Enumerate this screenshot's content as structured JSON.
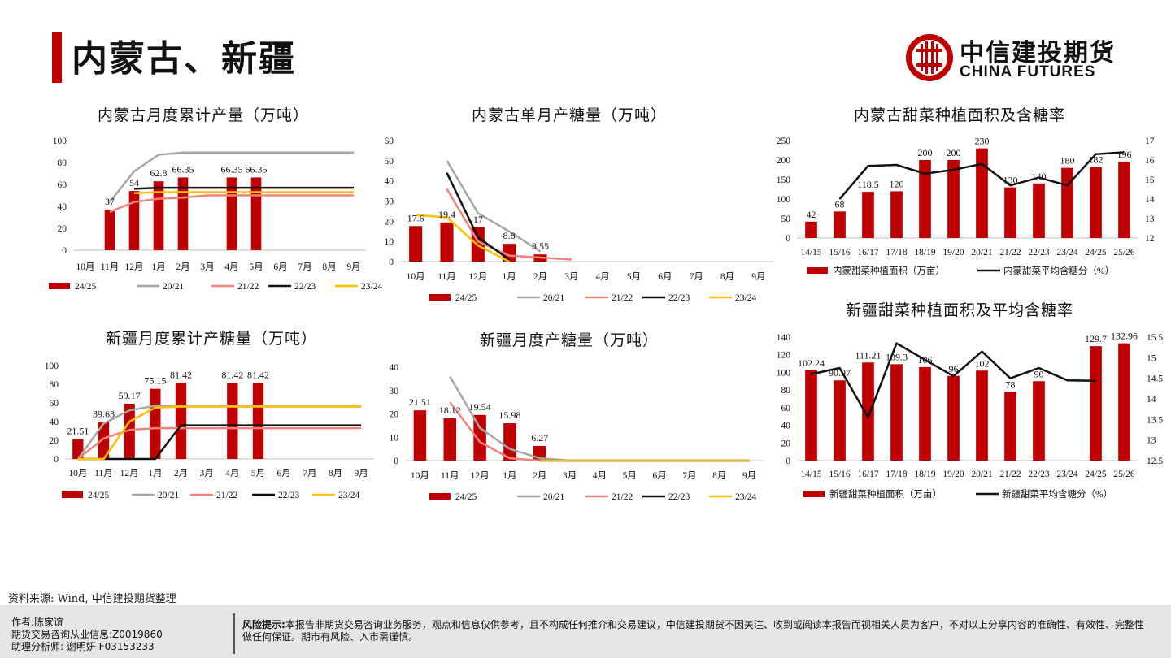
{
  "page": {
    "title": "内蒙古、新疆",
    "brand_cn": "中信建投期货",
    "brand_en": "CHINA FUTURES",
    "source": "资料来源: Wind, 中信建投期货整理",
    "footer_left": [
      "作者:陈家谊",
      "期货交易咨询从业信息:Z0019860",
      "助理分析师:  谢明妍 F03153233"
    ],
    "risk_label": "风险提示:",
    "risk_text": "本报告非期货交易咨询业务服务，观点和信息仅供参考，且不构成任何推介和交易建议，中信建投期货不因关注、收到或阅读本报告而视相关人员为客户，不对以上分享内容的准确性、有效性、完整性做任何保证。期市有风险、入市需谨慎。",
    "colors": {
      "red": "#c00000",
      "gray": "#a6a6a6",
      "salmon": "#f4817a",
      "black": "#111111",
      "yellow": "#ffc000"
    }
  },
  "chart_data": [
    {
      "id": "c1",
      "type": "bar+line",
      "title": "内蒙古月度累计产量（万吨）",
      "categories": [
        "10月",
        "11月",
        "12月",
        "1月",
        "2月",
        "3月",
        "4月",
        "5月",
        "6月",
        "7月",
        "8月",
        "9月"
      ],
      "ylim": [
        0,
        100
      ],
      "yticks": [
        0,
        20,
        40,
        60,
        80,
        100
      ],
      "bar_series": {
        "name": "24/25",
        "values": [
          null,
          37,
          54,
          62.8,
          66.35,
          null,
          66.35,
          66.35,
          null,
          null,
          null,
          null
        ],
        "labels": [
          "",
          "37",
          "54",
          "62.8",
          "66.35",
          "",
          "66.35",
          "66.35",
          "",
          "",
          "",
          ""
        ]
      },
      "line_series": [
        {
          "name": "20/21",
          "values": [
            null,
            44,
            72,
            87,
            89,
            89,
            89,
            89,
            89,
            89,
            89,
            89
          ]
        },
        {
          "name": "21/22",
          "values": [
            null,
            35,
            44,
            47,
            48,
            50,
            50,
            50,
            50,
            50,
            50,
            50
          ]
        },
        {
          "name": "22/23",
          "values": [
            null,
            null,
            56,
            57,
            57,
            57,
            57,
            57,
            57,
            57,
            57,
            57
          ]
        },
        {
          "name": "23/24",
          "values": [
            null,
            null,
            52,
            53,
            53,
            53,
            53,
            53,
            53,
            53,
            53,
            53
          ]
        }
      ]
    },
    {
      "id": "c2",
      "type": "bar+line",
      "title": "内蒙古单月产糖量（万吨）",
      "categories": [
        "10月",
        "11月",
        "12月",
        "1月",
        "2月",
        "3月",
        "4月",
        "5月",
        "6月",
        "7月",
        "8月",
        "9月"
      ],
      "ylim": [
        0,
        60
      ],
      "yticks": [
        0,
        10,
        20,
        30,
        40,
        50,
        60
      ],
      "bar_series": {
        "name": "24/25",
        "values": [
          17.6,
          19.4,
          17,
          8.8,
          3.55,
          null,
          null,
          null,
          null,
          null,
          null,
          null
        ],
        "labels": [
          "17.6",
          "19.4",
          "17",
          "8.8",
          "3.55",
          "",
          "",
          "",
          "",
          "",
          "",
          ""
        ]
      },
      "line_series": [
        {
          "name": "20/21",
          "values": [
            null,
            50,
            24,
            15,
            5,
            null,
            null,
            null,
            null,
            null,
            null,
            null
          ]
        },
        {
          "name": "21/22",
          "values": [
            null,
            36,
            10,
            3,
            2,
            1,
            null,
            null,
            null,
            null,
            null,
            null
          ]
        },
        {
          "name": "22/23",
          "values": [
            null,
            44,
            12,
            1,
            null,
            null,
            null,
            null,
            null,
            null,
            null,
            null
          ]
        },
        {
          "name": "23/24",
          "values": [
            23,
            22,
            8,
            0,
            null,
            null,
            null,
            null,
            null,
            null,
            null,
            null
          ]
        }
      ]
    },
    {
      "id": "c3",
      "type": "bar+line-dual",
      "title": "内蒙古甜菜种植面积及含糖率",
      "categories": [
        "14/15",
        "15/16",
        "16/17",
        "17/18",
        "18/19",
        "19/20",
        "20/21",
        "21/22",
        "22/23",
        "23/24",
        "24/25",
        "25/26"
      ],
      "ylim": [
        0,
        250
      ],
      "yticks": [
        0,
        50,
        100,
        150,
        200,
        250
      ],
      "y2lim": [
        12,
        17
      ],
      "y2ticks": [
        12,
        13,
        14,
        15,
        16,
        17
      ],
      "bar_series": {
        "name": "内蒙甜菜种植面积（万亩）",
        "values": [
          42,
          68,
          118.5,
          120,
          200,
          200,
          230,
          130,
          140,
          180,
          182,
          196
        ],
        "labels": [
          "42",
          "68",
          "118.5",
          "120",
          "200",
          "200",
          "230",
          "130",
          "140",
          "180",
          "182",
          "196"
        ]
      },
      "line_series": [
        {
          "name": "内蒙甜菜平均含糖分（%）",
          "axis": "y2",
          "values": [
            null,
            14,
            15.7,
            15.75,
            15.3,
            15.5,
            15.8,
            14.7,
            15.1,
            14.7,
            16.3,
            16.4
          ]
        }
      ]
    },
    {
      "id": "c4",
      "type": "bar+line",
      "title": "新疆月度累计产糖量（万吨）",
      "categories": [
        "10月",
        "11月",
        "12月",
        "1月",
        "2月",
        "3月",
        "4月",
        "5月",
        "6月",
        "7月",
        "8月",
        "9月"
      ],
      "ylim": [
        0,
        100
      ],
      "yticks": [
        0,
        20,
        40,
        60,
        80,
        100
      ],
      "bar_series": {
        "name": "24/25",
        "values": [
          21.51,
          39.63,
          59.17,
          75.15,
          81.42,
          null,
          81.42,
          81.42,
          null,
          null,
          null,
          null
        ],
        "labels": [
          "21.51",
          "39.63",
          "59.17",
          "75.15",
          "81.42",
          "",
          "81.42",
          "81.42",
          "",
          "",
          "",
          ""
        ]
      },
      "line_series": [
        {
          "name": "20/21",
          "values": [
            0,
            38,
            52,
            57,
            57,
            57,
            57,
            57,
            57,
            57,
            57,
            57
          ]
        },
        {
          "name": "21/22",
          "values": [
            0,
            22,
            31,
            33,
            33,
            33,
            33,
            33,
            33,
            33,
            33,
            33
          ]
        },
        {
          "name": "22/23",
          "values": [
            0,
            0,
            0,
            0,
            36,
            36,
            36,
            36,
            36,
            36,
            36,
            36
          ]
        },
        {
          "name": "23/24",
          "values": [
            0,
            0,
            40,
            55,
            56,
            56,
            56,
            56,
            56,
            56,
            56,
            56
          ]
        }
      ]
    },
    {
      "id": "c5",
      "type": "bar+line",
      "title": "新疆月度产糖量（万吨）",
      "categories": [
        "10月",
        "11月",
        "12月",
        "1月",
        "2月",
        "3月",
        "4月",
        "5月",
        "6月",
        "7月",
        "8月",
        "9月"
      ],
      "ylim": [
        0,
        40
      ],
      "yticks": [
        0,
        10,
        20,
        30,
        40
      ],
      "bar_series": {
        "name": "24/25",
        "values": [
          21.51,
          18.12,
          19.54,
          15.98,
          6.27,
          null,
          null,
          null,
          null,
          null,
          null,
          null
        ],
        "labels": [
          "21.51",
          "18.12",
          "19.54",
          "15.98",
          "6.27",
          "",
          "",
          "",
          "",
          "",
          "",
          ""
        ]
      },
      "line_series": [
        {
          "name": "20/21",
          "values": [
            null,
            36,
            14,
            5,
            1,
            0,
            0,
            0,
            0,
            0,
            0,
            0
          ]
        },
        {
          "name": "21/22",
          "values": [
            null,
            25,
            8,
            1,
            0,
            0,
            0,
            0,
            0,
            0,
            0,
            0
          ]
        },
        {
          "name": "22/23",
          "values": [
            null,
            null,
            null,
            null,
            0,
            0,
            0,
            0,
            0,
            0,
            0,
            0
          ]
        },
        {
          "name": "23/24",
          "values": [
            null,
            null,
            null,
            null,
            0,
            0,
            0,
            0,
            0,
            0,
            0,
            0
          ]
        }
      ]
    },
    {
      "id": "c6",
      "type": "bar+line-dual",
      "title": "新疆甜菜种植面积及平均含糖率",
      "categories": [
        "14/15",
        "15/16",
        "16/17",
        "17/18",
        "18/19",
        "19/20",
        "20/21",
        "21/22",
        "22/23",
        "23/24",
        "24/25",
        "25/26"
      ],
      "ylim": [
        0,
        140
      ],
      "yticks": [
        0,
        20,
        40,
        60,
        80,
        100,
        120,
        140
      ],
      "y2lim": [
        12.5,
        15.5
      ],
      "y2ticks": [
        12.5,
        13,
        13.5,
        14,
        14.5,
        15,
        15.5
      ],
      "bar_series": {
        "name": "新疆甜菜种植面积（万亩）",
        "values": [
          102.24,
          90.97,
          111.21,
          109.3,
          106,
          96,
          102,
          78,
          90,
          null,
          129.7,
          132.96
        ],
        "labels": [
          "102.24",
          "90.97",
          "111.21",
          "109.3",
          "106",
          "96",
          "102",
          "78",
          "90",
          "",
          "129.7",
          "132.96"
        ]
      },
      "line_series": [
        {
          "name": "新疆甜菜平均含糖分（%）",
          "axis": "y2",
          "values": [
            14.6,
            14.75,
            13.55,
            15.35,
            14.95,
            14.55,
            15.15,
            14.5,
            14.75,
            14.45,
            14.44,
            null
          ]
        }
      ]
    }
  ]
}
